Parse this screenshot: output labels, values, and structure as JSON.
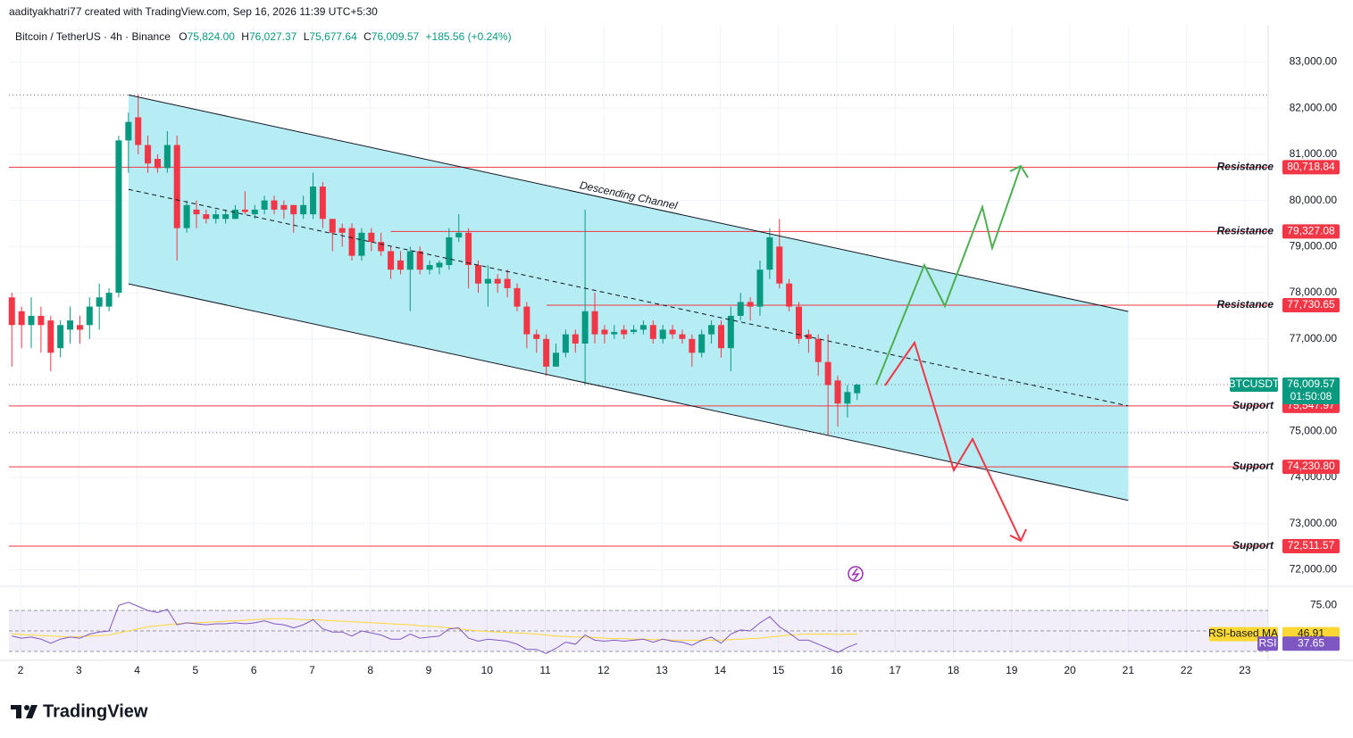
{
  "watermark": "aadityakhatri77 created with TradingView.com, Sep 16, 2026 11:39 UTC+5:30",
  "footer": {
    "brand": "TradingView"
  },
  "chart_data": {
    "type": "candlestick",
    "header": {
      "symbol": "Bitcoin / TetherUS · 4h · Binance",
      "fields": [
        {
          "key": "O",
          "value": "75,824.00"
        },
        {
          "key": "H",
          "value": "76,027.37"
        },
        {
          "key": "L",
          "value": "75,677.64"
        },
        {
          "key": "C",
          "value": "76,009.57"
        }
      ],
      "change": "+185.56 (+0.24%)"
    },
    "up_color": "#089981",
    "down_color": "#f23645",
    "xlim": [
      1.8,
      23.4
    ],
    "xticks": [
      2,
      3,
      4,
      5,
      6,
      7,
      8,
      9,
      10,
      11,
      12,
      13,
      14,
      15,
      16,
      17,
      18,
      19,
      20,
      21,
      22,
      23
    ],
    "ylim": [
      71700,
      83800
    ],
    "yticks": [
      {
        "value": 72000,
        "label": "72,000.00"
      },
      {
        "value": 73000,
        "label": "73,000.00"
      },
      {
        "value": 74000,
        "label": "74,000.00"
      },
      {
        "value": 75000,
        "label": "75,000.00"
      },
      {
        "value": 77000,
        "label": "77,000.00"
      },
      {
        "value": 78000,
        "label": "78,000.00"
      },
      {
        "value": 79000,
        "label": "79,000.00"
      },
      {
        "value": 80000,
        "label": "80,000.00"
      },
      {
        "value": 81000,
        "label": "81,000.00"
      },
      {
        "value": 82000,
        "label": "82,000.00"
      },
      {
        "value": 83000,
        "label": "83,000.00"
      }
    ],
    "grid": true,
    "x": [
      1.85,
      2.017,
      2.183,
      2.35,
      2.517,
      2.683,
      2.85,
      3.017,
      3.183,
      3.35,
      3.517,
      3.683,
      3.85,
      4.017,
      4.183,
      4.35,
      4.517,
      4.683,
      4.85,
      5.017,
      5.183,
      5.35,
      5.517,
      5.683,
      5.85,
      6.017,
      6.183,
      6.35,
      6.517,
      6.683,
      6.85,
      7.017,
      7.183,
      7.35,
      7.517,
      7.683,
      7.85,
      8.017,
      8.183,
      8.35,
      8.517,
      8.683,
      8.85,
      9.017,
      9.183,
      9.35,
      9.517,
      9.683,
      9.85,
      10.017,
      10.183,
      10.35,
      10.517,
      10.683,
      10.85,
      11.017,
      11.183,
      11.35,
      11.517,
      11.683,
      11.85,
      12.017,
      12.183,
      12.35,
      12.517,
      12.683,
      12.85,
      13.017,
      13.183,
      13.35,
      13.517,
      13.683,
      13.85,
      14.017,
      14.183,
      14.35,
      14.517,
      14.683,
      14.85,
      15.017,
      15.183,
      15.35,
      15.517,
      15.683,
      15.85,
      16.017,
      16.183,
      16.35
    ],
    "open": [
      77900,
      77600,
      77300,
      77500,
      77400,
      76800,
      77200,
      77300,
      77300,
      77700,
      77700,
      78000,
      81300,
      81800,
      81200,
      80900,
      80700,
      81200,
      79400,
      79800,
      79700,
      79600,
      79600,
      79600,
      79800,
      79700,
      79800,
      80000,
      79900,
      79900,
      79700,
      79700,
      80300,
      79600,
      79400,
      79400,
      78800,
      79300,
      79100,
      78900,
      78700,
      78500,
      78900,
      78500,
      78550,
      78600,
      79200,
      79300,
      78600,
      78200,
      78300,
      78300,
      78100,
      77700,
      77100,
      77000,
      76400,
      76700,
      77100,
      76900,
      77600,
      77200,
      77100,
      77200,
      77150,
      77200,
      77300,
      77000,
      77200,
      77100,
      77000,
      76700,
      77100,
      77300,
      76800,
      77500,
      77800,
      77700,
      78500,
      79000,
      78200,
      77700,
      77100,
      77000,
      76500,
      76100,
      75600,
      75824
    ],
    "high": [
      78000,
      77700,
      77900,
      77700,
      77500,
      77400,
      77700,
      77500,
      77900,
      78200,
      78100,
      81400,
      81900,
      82300,
      81400,
      81000,
      81500,
      81400,
      80000,
      80000,
      79800,
      79800,
      79800,
      79900,
      80200,
      79900,
      80100,
      80100,
      80000,
      79900,
      80100,
      80600,
      80400,
      79600,
      79500,
      79500,
      79400,
      79400,
      79300,
      79000,
      78900,
      79000,
      79000,
      78700,
      78700,
      79400,
      79700,
      79400,
      78700,
      78600,
      78400,
      78500,
      78200,
      77800,
      77200,
      77100,
      76900,
      77200,
      77200,
      79800,
      78000,
      77300,
      77300,
      77300,
      77300,
      77400,
      77400,
      77300,
      77300,
      77200,
      77100,
      77200,
      77400,
      77400,
      77700,
      78000,
      77900,
      78700,
      79400,
      79600,
      78300,
      77800,
      77200,
      77100,
      77100,
      76200,
      76000,
      76027.37
    ],
    "low": [
      76400,
      76800,
      76800,
      76700,
      76300,
      76600,
      76900,
      76900,
      77000,
      77200,
      77600,
      77900,
      80600,
      81000,
      80600,
      80600,
      80600,
      78700,
      79300,
      79400,
      79500,
      79500,
      79500,
      79600,
      79700,
      79600,
      79700,
      79700,
      79600,
      79300,
      79600,
      79600,
      79400,
      78900,
      79000,
      78700,
      78700,
      78900,
      78800,
      78300,
      78400,
      77600,
      78400,
      78400,
      78400,
      78500,
      79100,
      78100,
      78000,
      77700,
      78000,
      77900,
      77600,
      76800,
      76700,
      76200,
      76400,
      76600,
      76700,
      76000,
      76900,
      76900,
      77000,
      77000,
      77100,
      77100,
      76900,
      76900,
      77000,
      76900,
      76400,
      76600,
      76900,
      76600,
      76300,
      77400,
      77400,
      77500,
      78300,
      78100,
      77600,
      76900,
      76700,
      76200,
      74900,
      75100,
      75300,
      75677.64
    ],
    "close": [
      77300,
      77300,
      77500,
      77300,
      76700,
      77300,
      77400,
      77200,
      77700,
      77900,
      78000,
      81300,
      81700,
      81200,
      80800,
      80700,
      81200,
      79400,
      79900,
      79700,
      79600,
      79700,
      79700,
      79800,
      79750,
      79800,
      80000,
      79800,
      79800,
      79700,
      79900,
      80300,
      79600,
      79300,
      79300,
      78800,
      79300,
      79100,
      78900,
      78500,
      78500,
      78900,
      78500,
      78600,
      78650,
      79200,
      79300,
      78600,
      78200,
      78300,
      78200,
      78100,
      77700,
      77100,
      77000,
      76400,
      76700,
      77100,
      76900,
      77600,
      77100,
      77100,
      77150,
      77100,
      77200,
      77300,
      77000,
      77200,
      77100,
      77000,
      76700,
      77100,
      77300,
      76800,
      77500,
      77800,
      77700,
      78500,
      79200,
      78200,
      77700,
      77000,
      77000,
      76500,
      76000,
      75600,
      75850,
      76009.57
    ],
    "channel": {
      "label": "Descending Channel",
      "upper": [
        [
          3.85,
          82286
        ],
        [
          21,
          77595
        ]
      ],
      "lower": [
        [
          3.85,
          78193
        ],
        [
          21,
          73502
        ]
      ]
    },
    "dotted_levels": [
      82286,
      74969
    ],
    "levels": [
      {
        "label": "Resistance",
        "value": 80718.84,
        "value_label": "80,718.84"
      },
      {
        "label": "Resistance",
        "value": 79327.08,
        "value_label": "79,327.08",
        "from": 8.35
      },
      {
        "label": "Resistance",
        "value": 77730.65,
        "value_label": "77,730.65",
        "from": 11.02
      },
      {
        "label": "Support",
        "value": 75547.97,
        "value_label": "75,547.97"
      },
      {
        "label": "Support",
        "value": 74230.8,
        "value_label": "74,230.80"
      },
      {
        "label": "Support",
        "value": 72511.57,
        "value_label": "72,511.57"
      }
    ],
    "level_color": "#f23645",
    "last_price": {
      "symbol": "BTCUSDT",
      "value_label": "76,009.57",
      "countdown": "01:50:08"
    },
    "rsi": {
      "ylim": [
        23,
        91
      ],
      "yticks": [
        {
          "value": 75,
          "label": "75.00"
        }
      ],
      "bands": [
        70,
        50,
        30
      ],
      "color": "#7e57c2",
      "ma_color": "#fdd835",
      "values": [
        45,
        43,
        44,
        42,
        38,
        42,
        44,
        43,
        47,
        49,
        50,
        75,
        78,
        74,
        70,
        68,
        71,
        56,
        58,
        57,
        56,
        57,
        57,
        58,
        57,
        58,
        60,
        57,
        56,
        53,
        56,
        61,
        52,
        49,
        49,
        45,
        50,
        48,
        46,
        42,
        42,
        47,
        43,
        44,
        45,
        52,
        53,
        43,
        40,
        42,
        41,
        40,
        37,
        32,
        32,
        28,
        33,
        39,
        37,
        46,
        41,
        40,
        41,
        40,
        41,
        42,
        39,
        42,
        40,
        39,
        36,
        41,
        44,
        38,
        47,
        51,
        50,
        58,
        64,
        54,
        48,
        41,
        41,
        37,
        33,
        29,
        34,
        37.65
      ],
      "ma_values": [
        47,
        46.5,
        46,
        45.5,
        45,
        44.5,
        44,
        44.5,
        45,
        45.5,
        46,
        48,
        50,
        52,
        54,
        55,
        56,
        57,
        57.5,
        58,
        58.5,
        59,
        59.5,
        60,
        60.5,
        61,
        61.5,
        62,
        62,
        61.5,
        61,
        61,
        60.5,
        60,
        59.5,
        59,
        58.5,
        58,
        57.5,
        57,
        56.5,
        56,
        55,
        54.5,
        54,
        53,
        52,
        51,
        50,
        49.5,
        49,
        48.5,
        48,
        47.5,
        47,
        46,
        45,
        44.5,
        44,
        44,
        43.5,
        43,
        42.5,
        42.5,
        42,
        42,
        41.5,
        41.5,
        41,
        41,
        41,
        41,
        41,
        41,
        41.5,
        42,
        42.5,
        43,
        44,
        45,
        46,
        46.5,
        47,
        47,
        47,
        46.5,
        47,
        46.91
      ],
      "ma_name": "RSI-based MA",
      "ma_label": "46.91",
      "name": "RSI",
      "label": "37.65"
    }
  }
}
